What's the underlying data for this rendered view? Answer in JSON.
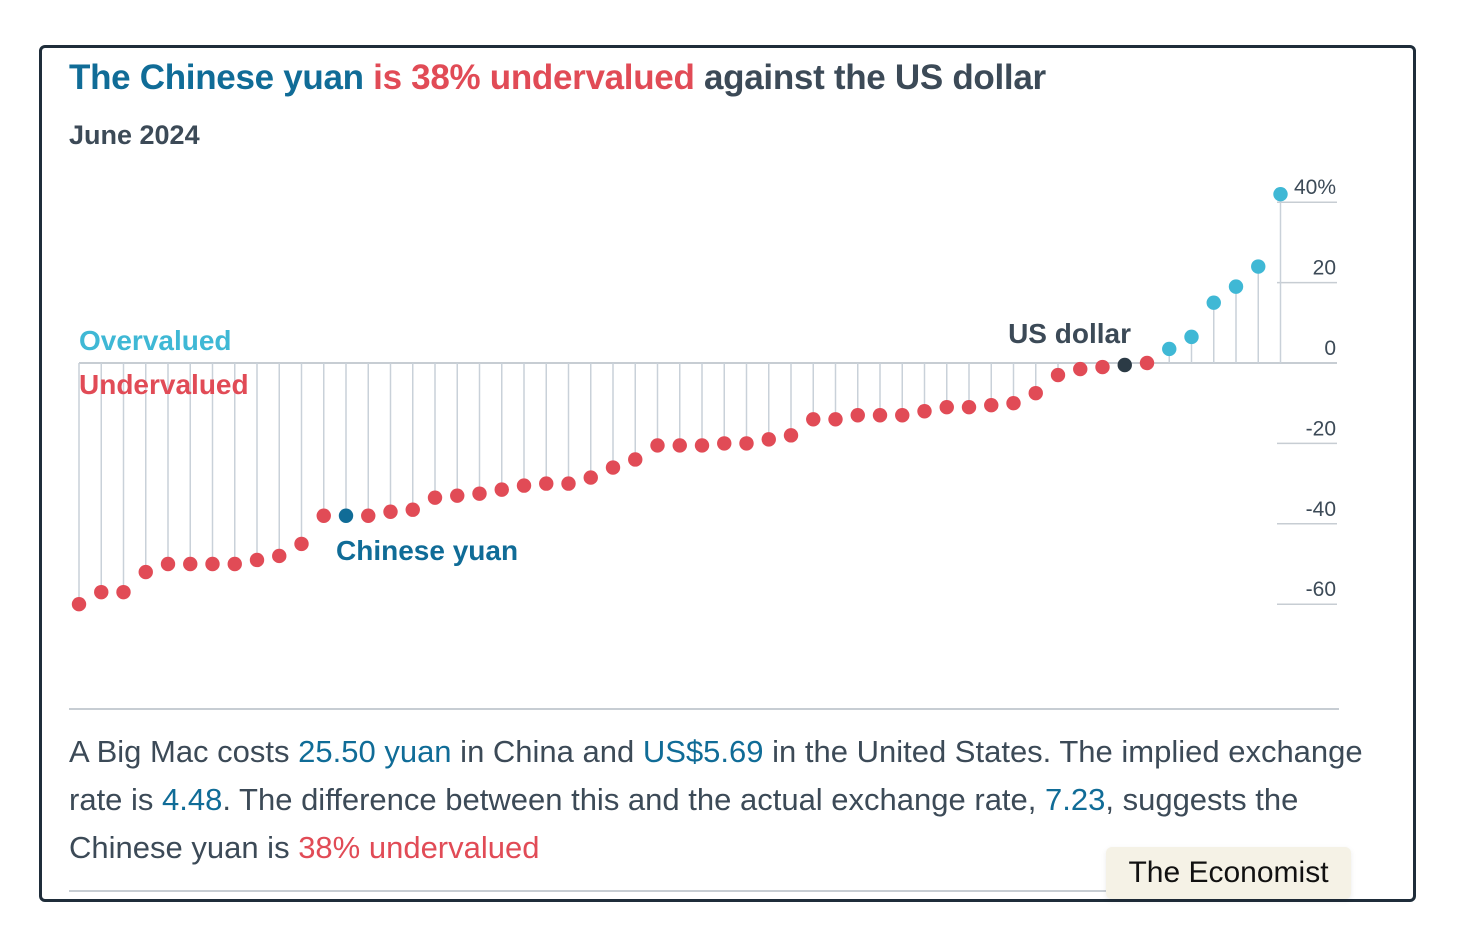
{
  "title": {
    "part1": "The Chinese yuan",
    "part2": "is 38% undervalued",
    "part3": "against the US dollar"
  },
  "subtitle": "June 2024",
  "colors": {
    "overvalued": "#3fb8d5",
    "undervalued": "#e14b56",
    "highlight": "#106c97",
    "base": "#2b3a45",
    "stem": "#c9d1d9"
  },
  "chart_data": {
    "type": "scatter",
    "style": "lollipop",
    "ylim": [
      -70,
      42
    ],
    "yticks": [
      {
        "value": 40,
        "label": "40%"
      },
      {
        "value": 20,
        "label": "20"
      },
      {
        "value": 0,
        "label": "0"
      },
      {
        "value": -20,
        "label": "-20"
      },
      {
        "value": -40,
        "label": "-40"
      },
      {
        "value": -60,
        "label": "-60"
      }
    ],
    "legend": {
      "overvalued": "Overvalued",
      "undervalued": "Undervalued"
    },
    "annotations": {
      "chinese_yuan": "Chinese yuan",
      "us_dollar": "US dollar"
    },
    "highlight_index": 12,
    "base_index": 47,
    "values": [
      -60,
      -57,
      -57,
      -52,
      -50,
      -50,
      -50,
      -50,
      -49,
      -48,
      -45,
      -38,
      -38,
      -38,
      -37,
      -36.5,
      -33.5,
      -33,
      -32.5,
      -31.5,
      -30.5,
      -30,
      -30,
      -28.5,
      -26,
      -24,
      -20.5,
      -20.5,
      -20.5,
      -20,
      -20,
      -19,
      -18,
      -14,
      -14,
      -13,
      -13,
      -13,
      -12,
      -11,
      -11,
      -10.5,
      -10,
      -7.5,
      -3,
      -1.5,
      -1,
      -0.5,
      0,
      3.5,
      6.5,
      15,
      19,
      24,
      42
    ]
  },
  "footer": {
    "s1": "A Big Mac costs ",
    "price_local": "25.50 yuan",
    "s2": " in China and ",
    "price_us": "US$5.69",
    "s3": " in the United States. The implied exchange rate is ",
    "implied_rate": "4.48",
    "s4": ". The difference between this and the actual exchange rate, ",
    "actual_rate": "7.23",
    "s5": ", suggests the Chinese yuan is ",
    "verdict": "38% undervalued"
  },
  "badge": "The Economist"
}
